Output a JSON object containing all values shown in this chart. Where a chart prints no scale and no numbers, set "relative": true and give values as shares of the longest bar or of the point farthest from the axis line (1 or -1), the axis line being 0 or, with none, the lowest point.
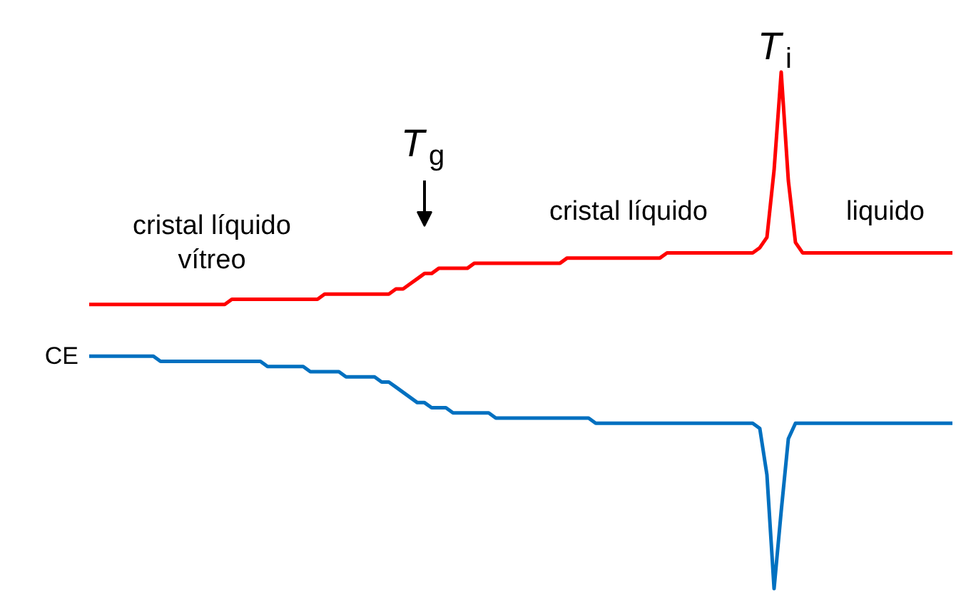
{
  "chart_data": {
    "type": "line",
    "relative": true,
    "grid": false,
    "marker": "none",
    "line_style": "solid",
    "categories": [
      null,
      null,
      null,
      null,
      null,
      null,
      null,
      null,
      null,
      null,
      null,
      null,
      null,
      null,
      null,
      null,
      null,
      null,
      null,
      null,
      null,
      null,
      null,
      null,
      null,
      null,
      null,
      null,
      null,
      null,
      null,
      null,
      null,
      null,
      null,
      null,
      null,
      null,
      null,
      null,
      null,
      null,
      null,
      null,
      null,
      null,
      null,
      null,
      null,
      null,
      null,
      null,
      null,
      null,
      null,
      null,
      null,
      null,
      null,
      null,
      null,
      null,
      null,
      null,
      null,
      null,
      null,
      null,
      null,
      null,
      null,
      null,
      null,
      null,
      null,
      null,
      null,
      null,
      null,
      null,
      null,
      null,
      null,
      null,
      null,
      null,
      null,
      null,
      null,
      null,
      null,
      null,
      null,
      null,
      null,
      null,
      null,
      null,
      null,
      null,
      null,
      null,
      null,
      null,
      null,
      null,
      null,
      null,
      null,
      null,
      null,
      null,
      null,
      null,
      null,
      null,
      null,
      null,
      null,
      null,
      null,
      null
    ],
    "series": [
      {
        "color": "#ff0000",
        "values": [
          0.55,
          0.55,
          0.55,
          0.55,
          0.55,
          0.55,
          0.55,
          0.55,
          0.55,
          0.55,
          0.55,
          0.55,
          0.55,
          0.55,
          0.55,
          0.55,
          0.55,
          0.55,
          0.55,
          0.55,
          0.56,
          0.56,
          0.56,
          0.56,
          0.56,
          0.56,
          0.56,
          0.56,
          0.56,
          0.56,
          0.56,
          0.56,
          0.56,
          0.57,
          0.57,
          0.57,
          0.57,
          0.57,
          0.57,
          0.57,
          0.57,
          0.57,
          0.57,
          0.58,
          0.58,
          0.59,
          0.6,
          0.61,
          0.61,
          0.62,
          0.62,
          0.62,
          0.62,
          0.62,
          0.63,
          0.63,
          0.63,
          0.63,
          0.63,
          0.63,
          0.63,
          0.63,
          0.63,
          0.63,
          0.63,
          0.63,
          0.63,
          0.64,
          0.64,
          0.64,
          0.64,
          0.64,
          0.64,
          0.64,
          0.64,
          0.64,
          0.64,
          0.64,
          0.64,
          0.64,
          0.64,
          0.65,
          0.65,
          0.65,
          0.65,
          0.65,
          0.65,
          0.65,
          0.65,
          0.65,
          0.65,
          0.65,
          0.65,
          0.65,
          0.66,
          0.68,
          0.81,
          1.0,
          0.79,
          0.67,
          0.65,
          0.65,
          0.65,
          0.65,
          0.65,
          0.65,
          0.65,
          0.65,
          0.65,
          0.65,
          0.65,
          0.65,
          0.65,
          0.65,
          0.65,
          0.65,
          0.65,
          0.65,
          0.65,
          0.65,
          0.65,
          0.65
        ]
      },
      {
        "name": "CE",
        "color": "#0070c0",
        "values": [
          0.45,
          0.45,
          0.45,
          0.45,
          0.45,
          0.45,
          0.45,
          0.45,
          0.45,
          0.45,
          0.44,
          0.44,
          0.44,
          0.44,
          0.44,
          0.44,
          0.44,
          0.44,
          0.44,
          0.44,
          0.44,
          0.44,
          0.44,
          0.44,
          0.44,
          0.43,
          0.43,
          0.43,
          0.43,
          0.43,
          0.43,
          0.42,
          0.42,
          0.42,
          0.42,
          0.42,
          0.41,
          0.41,
          0.41,
          0.41,
          0.41,
          0.4,
          0.4,
          0.39,
          0.38,
          0.37,
          0.36,
          0.36,
          0.35,
          0.35,
          0.35,
          0.34,
          0.34,
          0.34,
          0.34,
          0.34,
          0.34,
          0.33,
          0.33,
          0.33,
          0.33,
          0.33,
          0.33,
          0.33,
          0.33,
          0.33,
          0.33,
          0.33,
          0.33,
          0.33,
          0.33,
          0.32,
          0.32,
          0.32,
          0.32,
          0.32,
          0.32,
          0.32,
          0.32,
          0.32,
          0.32,
          0.32,
          0.32,
          0.32,
          0.32,
          0.32,
          0.32,
          0.32,
          0.32,
          0.32,
          0.32,
          0.32,
          0.32,
          0.32,
          0.31,
          0.22,
          0.0,
          0.15,
          0.29,
          0.32,
          0.32,
          0.32,
          0.32,
          0.32,
          0.32,
          0.32,
          0.32,
          0.32,
          0.32,
          0.32,
          0.32,
          0.32,
          0.32,
          0.32,
          0.32,
          0.32,
          0.32,
          0.32,
          0.32,
          0.32,
          0.32,
          0.32
        ]
      }
    ],
    "annotations": [
      "cristal líquido\nvítreo",
      "T$_{g}$",
      "cristal líquido",
      "T$_{i}$",
      "liquido"
    ]
  }
}
